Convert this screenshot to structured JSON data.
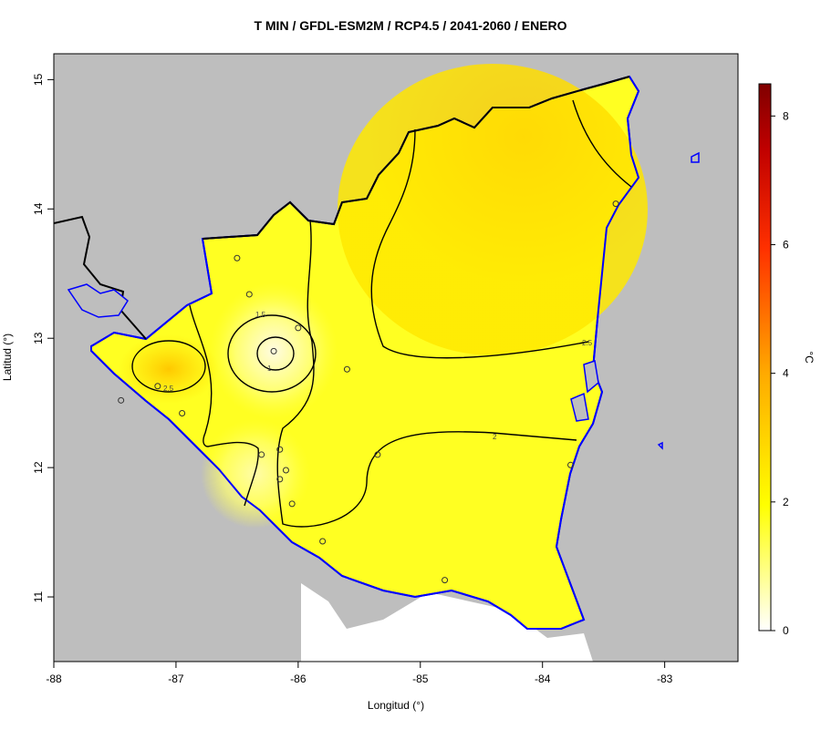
{
  "title": "T MIN / GFDL-ESM2M / RCP4.5 / 2041-2060 / ENERO",
  "xlabel": "Longitud (°)",
  "ylabel": "Latitud (°)",
  "legend_unit": "°C",
  "colors": {
    "land_bg": "#bebebe",
    "coast": "#0000ff",
    "border": "#000000",
    "scale_low": "#ffffff",
    "scale_mid": "#ffff00",
    "scale_high": "#ff0000",
    "scale_top": "#800000"
  },
  "chart_data": {
    "type": "heatmap",
    "title": "T MIN / GFDL-ESM2M / RCP4.5 / 2041-2060 / ENERO",
    "xlabel": "Longitud (°)",
    "ylabel": "Latitud (°)",
    "xlim": [
      -88,
      -82.4
    ],
    "ylim": [
      10.5,
      15.2
    ],
    "x_ticks": [
      -88,
      -87,
      -86,
      -85,
      -84,
      -83
    ],
    "y_ticks": [
      11,
      12,
      13,
      14,
      15
    ],
    "colorbar": {
      "label": "°C",
      "range": [
        0,
        8.5
      ],
      "ticks": [
        0,
        2,
        4,
        6,
        8
      ]
    },
    "contour_labels": [
      "1",
      "1.5",
      "2",
      "2.5",
      "2.5"
    ],
    "stations": [
      {
        "lon": -86.5,
        "lat": 13.62
      },
      {
        "lon": -86.4,
        "lat": 13.34
      },
      {
        "lon": -86.0,
        "lat": 13.08
      },
      {
        "lon": -86.2,
        "lat": 12.9
      },
      {
        "lon": -85.6,
        "lat": 12.76
      },
      {
        "lon": -87.15,
        "lat": 12.63
      },
      {
        "lon": -87.45,
        "lat": 12.52
      },
      {
        "lon": -86.95,
        "lat": 12.42
      },
      {
        "lon": -86.3,
        "lat": 12.1
      },
      {
        "lon": -86.15,
        "lat": 12.14
      },
      {
        "lon": -86.1,
        "lat": 11.98
      },
      {
        "lon": -86.15,
        "lat": 11.91
      },
      {
        "lon": -85.35,
        "lat": 12.1
      },
      {
        "lon": -86.05,
        "lat": 11.72
      },
      {
        "lon": -85.8,
        "lat": 11.43
      },
      {
        "lon": -84.8,
        "lat": 11.13
      },
      {
        "lon": -83.77,
        "lat": 12.02
      },
      {
        "lon": -83.4,
        "lat": 14.04
      }
    ]
  }
}
